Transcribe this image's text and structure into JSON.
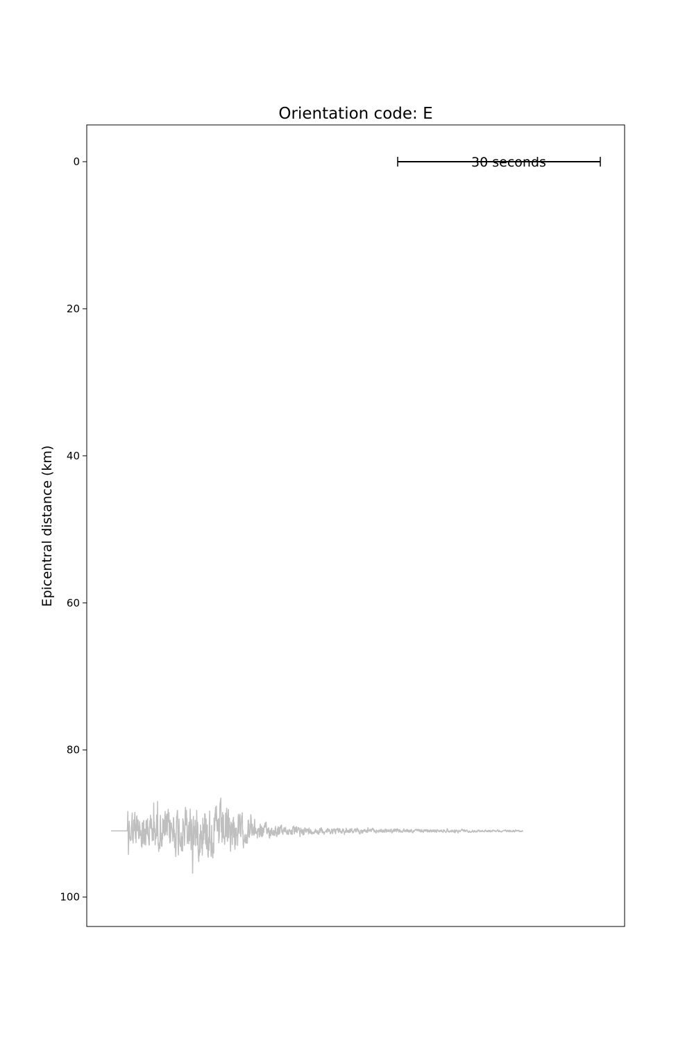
{
  "chart_data": {
    "type": "line",
    "title": "Orientation code: E",
    "xlabel": "",
    "ylabel": "Epicentral distance (km)",
    "ylim": [
      104,
      -5
    ],
    "y_inverted": true,
    "yticks": [
      0,
      20,
      40,
      60,
      80,
      100
    ],
    "ytick_labels": [
      "0",
      "20",
      "40",
      "60",
      "80",
      "100"
    ],
    "x_axis_visible": false,
    "grid": false,
    "scale_bar": {
      "label": "30 seconds",
      "duration_s": 30,
      "y": 0
    },
    "series": [
      {
        "color": "#bfbfbf",
        "distance_km": 91,
        "duration_s": 61,
        "onset_s": 2.4,
        "peak_amplitude_km": 8
      }
    ]
  }
}
